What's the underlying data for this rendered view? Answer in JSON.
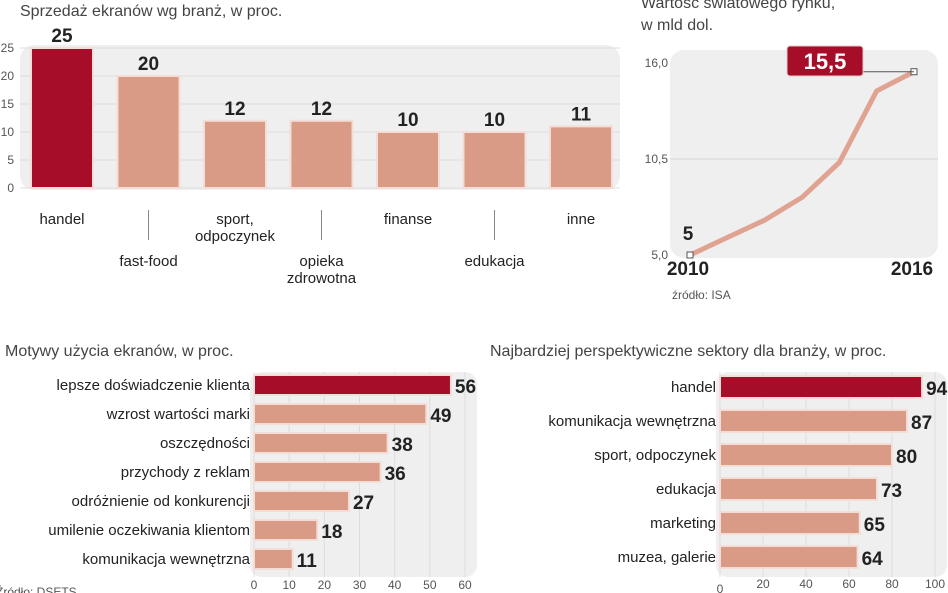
{
  "colors": {
    "highlight": "#a50d28",
    "bar": "#d99a86",
    "bar_border": "#f4ddd6",
    "plot_bg": "#efefef",
    "line": "#e0a392"
  },
  "chart_data": [
    {
      "type": "bar",
      "title": "Sprzedaż ekranów wg branż, w proc.",
      "categories": [
        "handel",
        "fast-food",
        "sport, odpoczynek",
        "opieka zdrowotna",
        "finanse",
        "edukacja",
        "inne"
      ],
      "category_lines": [
        [
          "handel"
        ],
        [
          "fast-food"
        ],
        [
          "sport,",
          "odpoczynek"
        ],
        [
          "opieka",
          "zdrowotna"
        ],
        [
          "finanse"
        ],
        [
          "edukacja"
        ],
        [
          "inne"
        ]
      ],
      "values": [
        25,
        20,
        12,
        12,
        10,
        10,
        11
      ],
      "value_labels": [
        "25",
        "20",
        "12",
        "12",
        "10",
        "10",
        "11"
      ],
      "highlight_index": 0,
      "ylim": [
        0,
        25
      ],
      "yticks": [
        "0",
        "5",
        "10",
        "15",
        "20",
        "25"
      ],
      "grid": true
    },
    {
      "type": "line",
      "title_lines": [
        "Wartość światowego rynku,",
        "w mld dol."
      ],
      "x": [
        2010,
        2011,
        2012,
        2013,
        2014,
        2015,
        2016
      ],
      "values": [
        5,
        6,
        7,
        8.3,
        10.3,
        14.4,
        15.5
      ],
      "xtick_labels": [
        "2010",
        "2016"
      ],
      "ylim": [
        5,
        16
      ],
      "yticks": [
        "5,0",
        "10,5",
        "16,0"
      ],
      "start_label": "5",
      "end_label": "15,5",
      "source": "źródło: ISA",
      "grid": true
    },
    {
      "type": "bar",
      "orientation": "horizontal",
      "title": "Motywy użycia ekranów, w proc.",
      "categories": [
        "lepsze doświadczenie klienta",
        "wzrost wartości marki",
        "oszczędności",
        "przychody z reklam",
        "odróżnienie od konkurencji",
        "umilenie oczekiwania klientom",
        "komunikacja wewnętrzna"
      ],
      "values": [
        56,
        49,
        38,
        36,
        27,
        18,
        11
      ],
      "value_labels": [
        "56",
        "49",
        "38",
        "36",
        "27",
        "18",
        "11"
      ],
      "highlight_index": 0,
      "xlim": [
        0,
        60
      ],
      "xticks": [
        "0",
        "10",
        "20",
        "30",
        "40",
        "50",
        "60"
      ],
      "source": "Źródło: DSETS",
      "grid": true
    },
    {
      "type": "bar",
      "orientation": "horizontal",
      "title": "Najbardziej perspektywiczne sektory dla branży, w proc.",
      "categories": [
        "handel",
        "komunikacja wewnętrzna",
        "sport, odpoczynek",
        "edukacja",
        "marketing",
        "muzea, galerie"
      ],
      "values": [
        94,
        87,
        80,
        73,
        65,
        64
      ],
      "value_labels": [
        "94",
        "87",
        "80",
        "73",
        "65",
        "64"
      ],
      "highlight_index": 0,
      "xlim": [
        0,
        100
      ],
      "xticks": [
        "0",
        "20",
        "40",
        "60",
        "80",
        "100"
      ],
      "grid": true
    }
  ]
}
